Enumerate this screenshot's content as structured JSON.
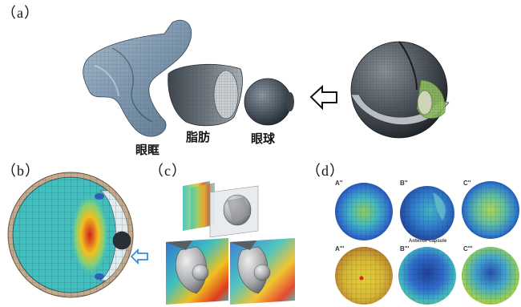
{
  "panels": {
    "a": {
      "label": "（a）",
      "captions": {
        "orbit": "眼眶",
        "fat": "脂肪",
        "eyeball": "眼球"
      }
    },
    "b": {
      "label": "（b）"
    },
    "c": {
      "label": "（c）"
    },
    "d": {
      "label": "（d）",
      "top_row": [
        "A''",
        "B''",
        "C''"
      ],
      "bottom_row": [
        "A'''",
        "B'''",
        "C'''"
      ],
      "middle_caption": "Anterior capsule"
    }
  },
  "colors": {
    "mesh_blue_grey": "#8fa5b8",
    "mesh_dark_grey": "#5b646e",
    "arrow_blue": "#3b8fd6",
    "fem_teal": "#3fbfbf"
  }
}
